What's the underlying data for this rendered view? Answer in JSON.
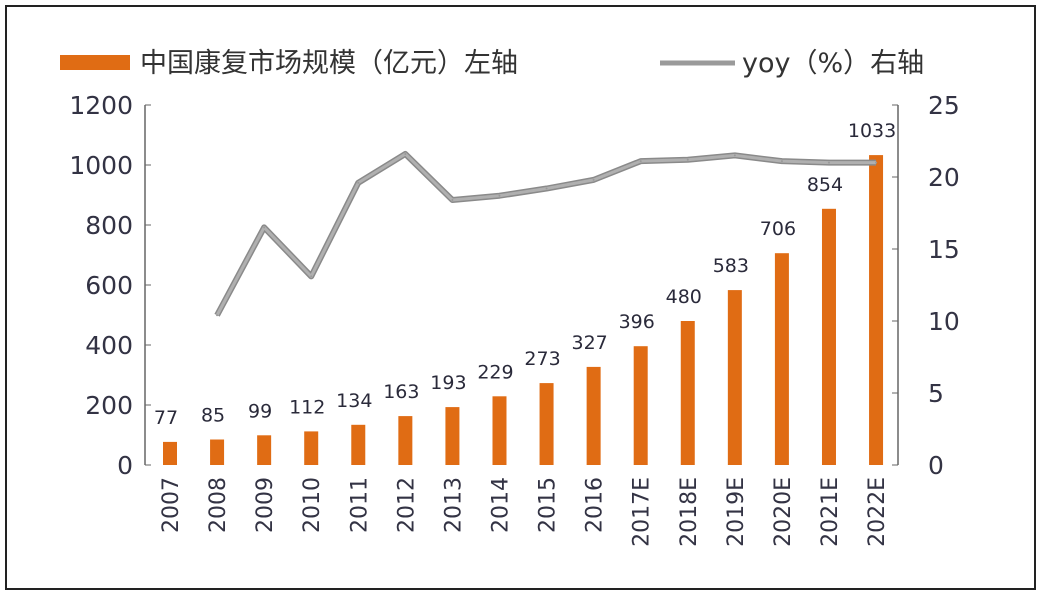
{
  "chart_data": {
    "type": "bar+line",
    "categories": [
      "2007",
      "2008",
      "2009",
      "2010",
      "2011",
      "2012",
      "2013",
      "2014",
      "2015",
      "2016",
      "2017E",
      "2018E",
      "2019E",
      "2020E",
      "2021E",
      "2022E"
    ],
    "series": [
      {
        "name": "中国康复市场规模（亿元）左轴",
        "type": "bar",
        "axis": "left",
        "color": "#E06C14",
        "values": [
          77,
          85,
          99,
          112,
          134,
          163,
          193,
          229,
          273,
          327,
          396,
          480,
          583,
          706,
          854,
          1033
        ]
      },
      {
        "name": "yoy（%）右轴",
        "type": "line",
        "axis": "right",
        "color": "#9a9a9a",
        "values": [
          null,
          10.4,
          16.5,
          13.1,
          19.6,
          21.6,
          18.4,
          18.7,
          19.2,
          19.8,
          21.1,
          21.2,
          21.5,
          21.1,
          21.0,
          21.0
        ]
      }
    ],
    "left_axis": {
      "ylim": [
        0,
        1200
      ],
      "ticks": [
        "0",
        "200",
        "400",
        "600",
        "800",
        "1000",
        "1200"
      ]
    },
    "right_axis": {
      "ylim": [
        0,
        25
      ],
      "ticks": [
        "0",
        "5",
        "10",
        "15",
        "20",
        "25"
      ]
    },
    "legend_position": "top",
    "grid": false,
    "data_labels": true
  }
}
